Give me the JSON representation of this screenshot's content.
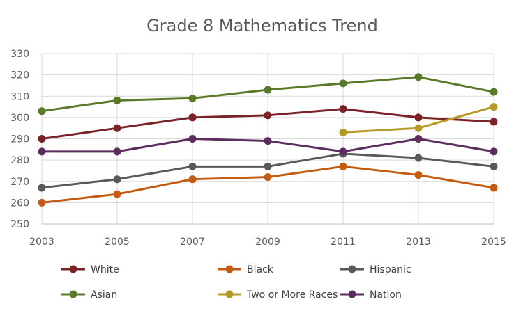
{
  "chart_data": {
    "type": "line",
    "title": "Grade 8 Mathematics Trend",
    "xlabel": "",
    "ylabel": "",
    "categories": [
      "2003",
      "2005",
      "2007",
      "2009",
      "2011",
      "2013",
      "2015"
    ],
    "ylim": [
      250,
      330
    ],
    "yticks": [
      250,
      260,
      270,
      280,
      290,
      300,
      310,
      320,
      330
    ],
    "grid": true,
    "legend_position": "bottom",
    "series": [
      {
        "name": "White",
        "color": "#7B2226",
        "values": [
          290,
          295,
          300,
          301,
          304,
          300,
          298
        ]
      },
      {
        "name": "Black",
        "color": "#C55A11",
        "values": [
          260,
          264,
          271,
          272,
          277,
          273,
          267
        ]
      },
      {
        "name": "Hispanic",
        "color": "#595959",
        "values": [
          267,
          271,
          277,
          277,
          283,
          281,
          277
        ]
      },
      {
        "name": "Asian",
        "color": "#5A7A2A",
        "values": [
          303,
          308,
          309,
          313,
          316,
          319,
          312
        ]
      },
      {
        "name": "Two or More Races",
        "color": "#B59A25",
        "values": [
          null,
          null,
          null,
          null,
          293,
          295,
          305
        ]
      },
      {
        "name": "Nation",
        "color": "#5B2C5E",
        "values": [
          284,
          284,
          290,
          289,
          284,
          290,
          284
        ]
      }
    ]
  }
}
